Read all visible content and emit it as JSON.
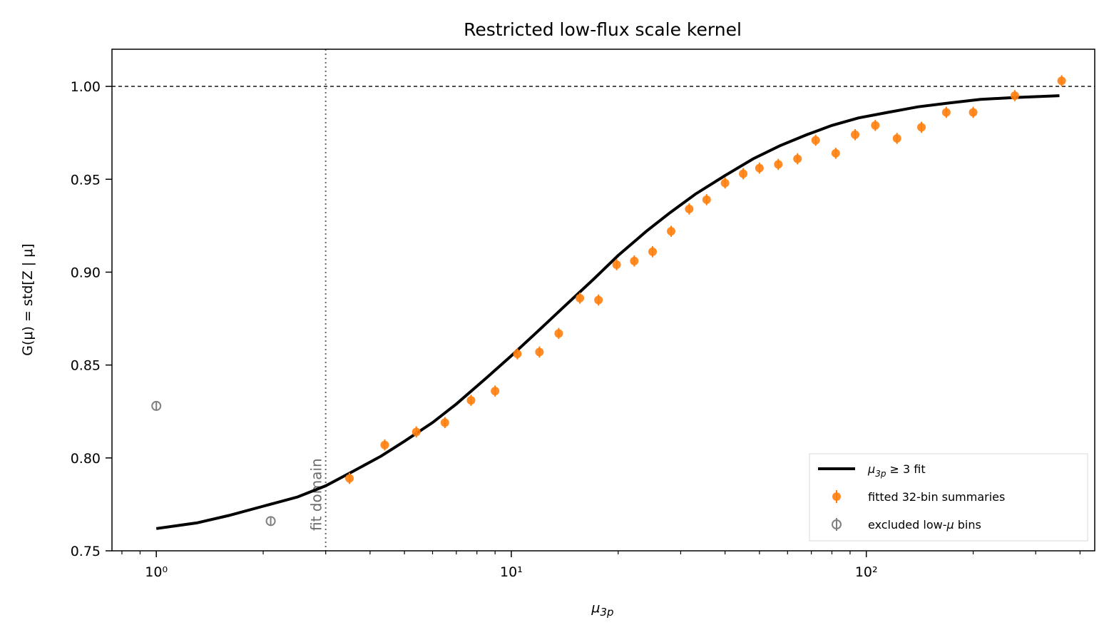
{
  "chart_data": {
    "type": "scatter",
    "title": "Restricted low-flux scale kernel",
    "xlabel": "μ_3p",
    "ylabel": "G(μ) = std[Z | μ]",
    "xscale": "log",
    "xlim": [
      0.75,
      440
    ],
    "ylim": [
      0.75,
      1.02
    ],
    "x_ticks": [
      {
        "value": 1,
        "label": "10⁰"
      },
      {
        "value": 10,
        "label": "10¹"
      },
      {
        "value": 100,
        "label": "10²"
      }
    ],
    "y_ticks": [
      {
        "value": 0.75,
        "label": "0.75"
      },
      {
        "value": 0.8,
        "label": "0.80"
      },
      {
        "value": 0.85,
        "label": "0.85"
      },
      {
        "value": 0.9,
        "label": "0.90"
      },
      {
        "value": 0.95,
        "label": "0.95"
      },
      {
        "value": 1.0,
        "label": "1.00"
      }
    ],
    "reference_line_y": 1.0,
    "fit_domain_x": 3.0,
    "fit_domain_label": "fit domain",
    "grid": false,
    "legend_position": "lower-right",
    "legend": [
      {
        "name": "μ_3p ≥ 3 fit",
        "style": "line",
        "color": "#000000"
      },
      {
        "name": "fitted 32-bin summaries",
        "style": "errorbar-filled",
        "color": "#ff7f0e"
      },
      {
        "name": "excluded low-μ bins",
        "style": "errorbar-open",
        "color": "#808080"
      }
    ],
    "series": [
      {
        "name": "μ_3p ≥ 3 fit",
        "kind": "line",
        "color": "#000000",
        "x": [
          1.0,
          1.3,
          1.6,
          2.0,
          2.5,
          3.0,
          3.6,
          4.3,
          5.0,
          6.0,
          7.0,
          8.5,
          10,
          12,
          14,
          17,
          20,
          24,
          28,
          33,
          40,
          48,
          57,
          68,
          80,
          95,
          115,
          140,
          170,
          210,
          260,
          350
        ],
        "y": [
          0.762,
          0.765,
          0.769,
          0.774,
          0.779,
          0.785,
          0.793,
          0.801,
          0.809,
          0.819,
          0.829,
          0.843,
          0.855,
          0.869,
          0.881,
          0.896,
          0.909,
          0.922,
          0.932,
          0.942,
          0.952,
          0.961,
          0.968,
          0.974,
          0.979,
          0.983,
          0.986,
          0.989,
          0.991,
          0.993,
          0.994,
          0.995
        ]
      },
      {
        "name": "fitted 32-bin summaries",
        "kind": "errorbar",
        "color": "#ff7f0e",
        "x": [
          3.5,
          4.4,
          5.4,
          6.5,
          7.7,
          9.0,
          10.4,
          12.0,
          13.6,
          15.6,
          17.6,
          19.8,
          22.2,
          25.0,
          28.2,
          31.7,
          35.5,
          40.0,
          45.0,
          50.0,
          56.5,
          64.0,
          72.0,
          82.0,
          93.0,
          106.0,
          122.0,
          143.0,
          168.0,
          200.0,
          262.0,
          355.0
        ],
        "y": [
          0.789,
          0.807,
          0.814,
          0.819,
          0.831,
          0.836,
          0.856,
          0.857,
          0.867,
          0.886,
          0.885,
          0.904,
          0.906,
          0.911,
          0.922,
          0.934,
          0.939,
          0.948,
          0.953,
          0.956,
          0.958,
          0.961,
          0.971,
          0.964,
          0.974,
          0.979,
          0.972,
          0.978,
          0.986,
          0.986,
          0.995,
          1.003
        ],
        "yerr": 0.003
      },
      {
        "name": "excluded low-μ bins",
        "kind": "errorbar",
        "color": "#808080",
        "x": [
          1.0,
          2.1
        ],
        "y": [
          0.828,
          0.766
        ],
        "yerr": 0.002
      }
    ]
  }
}
